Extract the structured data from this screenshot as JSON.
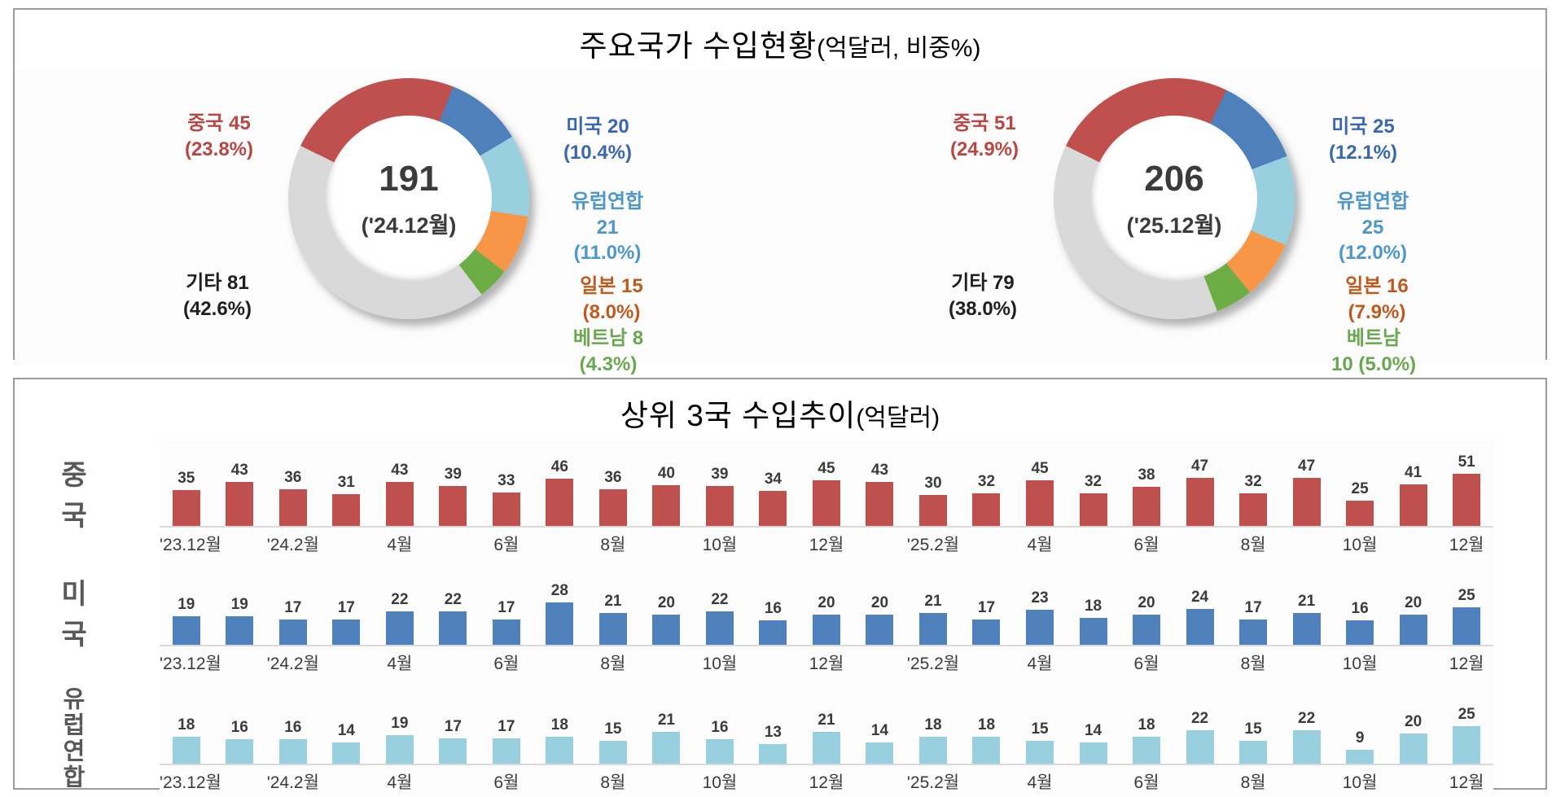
{
  "panel_import_status": {
    "title": "주요국가 수입현황",
    "title_unit": "(억달러, 비중%)",
    "donuts": [
      {
        "center_value": "191",
        "center_period": "('24.12월)",
        "segments": [
          {
            "name": "중국",
            "value": 45,
            "share_pct": 23.8,
            "color": "#C0504D",
            "text_color": "#B84743",
            "label_lines": [
              "중국 45",
              "(23.8%)"
            ]
          },
          {
            "name": "미국",
            "value": 20,
            "share_pct": 10.4,
            "color": "#4E80BC",
            "text_color": "#3A67AE",
            "label_lines": [
              "미국 20",
              "(10.4%)"
            ]
          },
          {
            "name": "유럽연합",
            "value": 21,
            "share_pct": 11.0,
            "color": "#98D0DF",
            "text_color": "#4E97C6",
            "label_lines": [
              "유럽연합",
              "21",
              "(11.0%)"
            ]
          },
          {
            "name": "일본",
            "value": 15,
            "share_pct": 8.0,
            "color": "#F79646",
            "text_color": "#BE5A1E",
            "label_lines": [
              "일본 15",
              "(8.0%)"
            ]
          },
          {
            "name": "베트남",
            "value": 8,
            "share_pct": 4.3,
            "color": "#6CAE45",
            "text_color": "#69A84F",
            "label_lines": [
              "베트남 8",
              "(4.3%)"
            ]
          },
          {
            "name": "기타",
            "value": 81,
            "share_pct": 42.6,
            "color": "#D9D9D9",
            "text_color": "#1F1F1F",
            "label_lines": [
              "기타 81",
              "(42.6%)"
            ]
          }
        ]
      },
      {
        "center_value": "206",
        "center_period": "('25.12월)",
        "segments": [
          {
            "name": "중국",
            "value": 51,
            "share_pct": 24.9,
            "color": "#C0504D",
            "text_color": "#B84743",
            "label_lines": [
              "중국 51",
              "(24.9%)"
            ]
          },
          {
            "name": "미국",
            "value": 25,
            "share_pct": 12.1,
            "color": "#4E80BC",
            "text_color": "#3A67AE",
            "label_lines": [
              "미국 25",
              "(12.1%)"
            ]
          },
          {
            "name": "유럽연합",
            "value": 25,
            "share_pct": 12.0,
            "color": "#98D0DF",
            "text_color": "#4E97C6",
            "label_lines": [
              "유럽연합",
              "25",
              "(12.0%)"
            ]
          },
          {
            "name": "일본",
            "value": 16,
            "share_pct": 7.9,
            "color": "#F79646",
            "text_color": "#BE5A1E",
            "label_lines": [
              "일본 16",
              "(7.9%)"
            ]
          },
          {
            "name": "베트남",
            "value": 10,
            "share_pct": 5.0,
            "color": "#6CAE45",
            "text_color": "#69A84F",
            "label_lines": [
              "베트남",
              "10 (5.0%)"
            ]
          },
          {
            "name": "기타",
            "value": 79,
            "share_pct": 38.0,
            "color": "#D9D9D9",
            "text_color": "#1F1F1F",
            "label_lines": [
              "기타 79",
              "(38.0%)"
            ]
          }
        ]
      }
    ]
  },
  "panel_trend": {
    "title": "상위 3국 수입추이",
    "title_unit": "(억달러)",
    "x_tick_labels": [
      "'23.12월",
      "'24.2월",
      "4월",
      "6월",
      "8월",
      "10월",
      "12월",
      "'25.2월",
      "4월",
      "6월",
      "8월",
      "10월",
      "12월"
    ],
    "rows": [
      {
        "label": "중국",
        "bar_color": "#C0504D",
        "values": [
          35,
          43,
          36,
          31,
          43,
          39,
          33,
          46,
          36,
          40,
          39,
          34,
          45,
          43,
          30,
          32,
          45,
          32,
          38,
          47,
          32,
          47,
          25,
          41,
          51
        ]
      },
      {
        "label": "미국",
        "bar_color": "#4E80BC",
        "values": [
          19,
          19,
          17,
          17,
          22,
          22,
          17,
          28,
          21,
          20,
          22,
          16,
          20,
          20,
          21,
          17,
          23,
          18,
          20,
          24,
          17,
          21,
          16,
          20,
          25
        ]
      },
      {
        "label": "유럽연합",
        "bar_color": "#98D0DF",
        "values": [
          18,
          16,
          16,
          14,
          19,
          17,
          17,
          18,
          15,
          21,
          16,
          13,
          21,
          14,
          18,
          18,
          15,
          14,
          18,
          22,
          15,
          22,
          9,
          20,
          25
        ]
      }
    ]
  },
  "chart_data": [
    {
      "type": "pie",
      "subtype": "donut",
      "title": "주요국가 수입현황(억달러, 비중%)",
      "period": "'24.12월",
      "center_total": 191,
      "labels": [
        "중국",
        "미국",
        "유럽연합",
        "일본",
        "베트남",
        "기타"
      ],
      "values": [
        45,
        20,
        21,
        15,
        8,
        81
      ],
      "shares_pct": [
        23.8,
        10.4,
        11.0,
        8.0,
        4.3,
        42.6
      ],
      "colors": [
        "#C0504D",
        "#4E80BC",
        "#98D0DF",
        "#F79646",
        "#6CAE45",
        "#D9D9D9"
      ],
      "start_angle_deg": -64,
      "direction": "clockwise"
    },
    {
      "type": "pie",
      "subtype": "donut",
      "title": "주요국가 수입현황(억달러, 비중%)",
      "period": "'25.12월",
      "center_total": 206,
      "labels": [
        "중국",
        "미국",
        "유럽연합",
        "일본",
        "베트남",
        "기타"
      ],
      "values": [
        51,
        25,
        25,
        16,
        10,
        79
      ],
      "shares_pct": [
        24.9,
        12.1,
        12.0,
        7.9,
        5.0,
        38.0
      ],
      "colors": [
        "#C0504D",
        "#4E80BC",
        "#98D0DF",
        "#F79646",
        "#6CAE45",
        "#D9D9D9"
      ],
      "start_angle_deg": -64,
      "direction": "clockwise"
    },
    {
      "type": "bar",
      "title": "상위 3국 수입추이(억달러)",
      "layout": "small multiples — one horizontal band per series, shared monthly x-axis",
      "n_bars_per_series": 25,
      "x_tick_labels": [
        "'23.12월",
        "'24.2월",
        "4월",
        "6월",
        "8월",
        "10월",
        "12월",
        "'25.2월",
        "4월",
        "6월",
        "8월",
        "10월",
        "12월"
      ],
      "x_tick_every_n_bars": 2,
      "x_range_note": "monthly bars from '23.12월 to '25.12월",
      "grid": false,
      "legend": "row labels on left side",
      "series": [
        {
          "name": "중국",
          "color": "#C0504D",
          "values": [
            35,
            43,
            36,
            31,
            43,
            39,
            33,
            46,
            36,
            40,
            39,
            34,
            45,
            43,
            30,
            32,
            45,
            32,
            38,
            47,
            32,
            47,
            25,
            41,
            51
          ]
        },
        {
          "name": "미국",
          "color": "#4E80BC",
          "values": [
            19,
            19,
            17,
            17,
            22,
            22,
            17,
            28,
            21,
            20,
            22,
            16,
            20,
            20,
            21,
            17,
            23,
            18,
            20,
            24,
            17,
            21,
            16,
            20,
            25
          ]
        },
        {
          "name": "유럽연합",
          "color": "#98D0DF",
          "values": [
            18,
            16,
            16,
            14,
            19,
            17,
            17,
            18,
            15,
            21,
            16,
            13,
            21,
            14,
            18,
            18,
            15,
            14,
            18,
            22,
            15,
            22,
            9,
            20,
            25
          ]
        }
      ]
    }
  ]
}
